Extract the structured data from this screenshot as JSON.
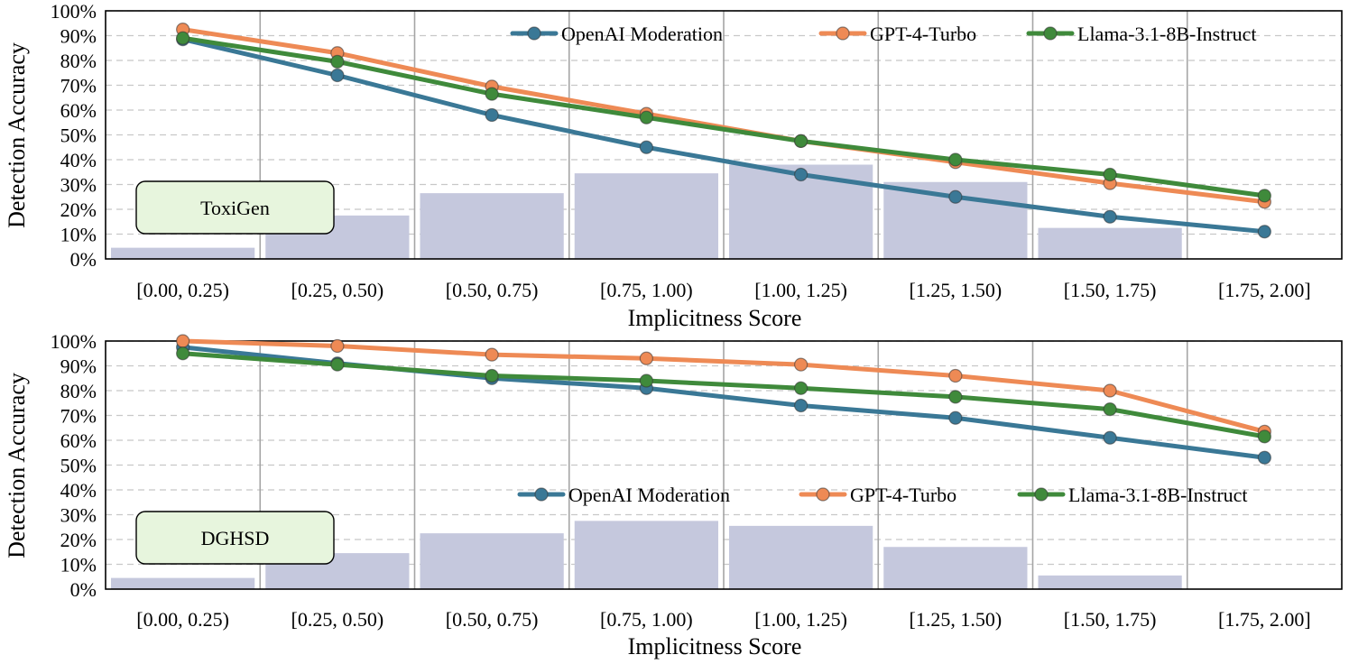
{
  "colors": {
    "openai": "#3a7896",
    "gpt4": "#ee8a55",
    "llama": "#3f8a3b",
    "bar": "#c5c8dd",
    "dataset_box": "#e7f5dd",
    "grid": "#c8c8c8",
    "sep": "#a5a5a5"
  },
  "chart_data": [
    {
      "type": "line",
      "dataset_label": "ToxiGen",
      "xlabel": "Implicitness Score",
      "ylabel": "Detection Accuracy",
      "ylim": [
        0,
        100
      ],
      "yticks": [
        "0%",
        "10%",
        "20%",
        "30%",
        "40%",
        "50%",
        "60%",
        "70%",
        "80%",
        "90%",
        "100%"
      ],
      "categories": [
        "[0.00, 0.25)",
        "[0.25, 0.50)",
        "[0.50, 0.75)",
        "[0.75, 1.00)",
        "[1.00, 1.25)",
        "[1.25, 1.50)",
        "[1.50, 1.75)",
        "[1.75, 2.00]"
      ],
      "bars": [
        4.5,
        17.5,
        26.5,
        34.5,
        38,
        31,
        12.5,
        0
      ],
      "series": [
        {
          "name": "OpenAI Moderation",
          "color_key": "openai",
          "values": [
            88.5,
            74,
            58,
            45,
            34,
            25,
            17,
            11
          ]
        },
        {
          "name": "GPT-4-Turbo",
          "color_key": "gpt4",
          "values": [
            92.5,
            83,
            69.5,
            58.5,
            47.5,
            39,
            30.5,
            23
          ]
        },
        {
          "name": "Llama-3.1-8B-Instruct",
          "color_key": "llama",
          "values": [
            89,
            79.5,
            66.5,
            57,
            47.5,
            40,
            34,
            25.5
          ]
        }
      ],
      "legend_position": "top-right"
    },
    {
      "type": "line",
      "dataset_label": "DGHSD",
      "xlabel": "Implicitness Score",
      "ylabel": "Detection Accuracy",
      "ylim": [
        0,
        100
      ],
      "yticks": [
        "0%",
        "10%",
        "20%",
        "30%",
        "40%",
        "50%",
        "60%",
        "70%",
        "80%",
        "90%",
        "100%"
      ],
      "categories": [
        "[0.00, 0.25)",
        "[0.25, 0.50)",
        "[0.50, 0.75)",
        "[0.75, 1.00)",
        "[1.00, 1.25)",
        "[1.25, 1.50)",
        "[1.50, 1.75)",
        "[1.75, 2.00]"
      ],
      "bars": [
        4.5,
        14.5,
        22.5,
        27.5,
        25.5,
        17,
        5.5,
        0
      ],
      "series": [
        {
          "name": "OpenAI Moderation",
          "color_key": "openai",
          "values": [
            97.5,
            91,
            85,
            81,
            74,
            69,
            61,
            53
          ]
        },
        {
          "name": "GPT-4-Turbo",
          "color_key": "gpt4",
          "values": [
            100,
            98,
            94.5,
            93,
            90.5,
            86,
            80,
            63.5
          ]
        },
        {
          "name": "Llama-3.1-8B-Instruct",
          "color_key": "llama",
          "values": [
            95,
            90.5,
            86,
            84,
            81,
            77.5,
            72.5,
            61.5
          ]
        }
      ],
      "legend_position": "middle-right"
    }
  ]
}
